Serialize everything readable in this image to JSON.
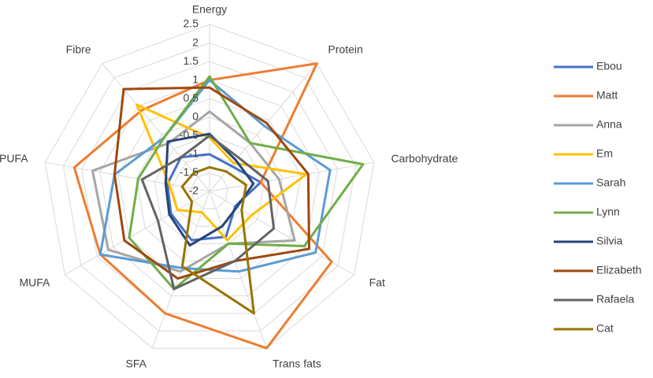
{
  "chart_data": {
    "type": "radar",
    "categories": [
      "Energy",
      "Protein",
      "Carbohydrate",
      "Fat",
      "Trans fats",
      "SFA",
      "MUFA",
      "PUFA",
      "Fibre"
    ],
    "ylim": [
      -2,
      2.5
    ],
    "yticks": [
      -2,
      -1.5,
      -1,
      -0.5,
      0,
      0.5,
      1,
      1.5,
      2,
      2.5
    ],
    "grid": true,
    "legend": "right",
    "series": [
      {
        "name": "Ebou",
        "color": "#4472c4",
        "values": [
          -1.0,
          -1.1,
          -0.6,
          -1.2,
          -0.7,
          -0.6,
          -0.8,
          -0.85,
          -0.8
        ]
      },
      {
        "name": "Matt",
        "color": "#ed7d31",
        "values": [
          1.0,
          2.5,
          -0.6,
          1.8,
          2.5,
          1.5,
          1.4,
          1.7,
          0.85
        ]
      },
      {
        "name": "Anna",
        "color": "#a5a5a5",
        "values": [
          0.15,
          -0.3,
          -0.1,
          0.65,
          -0.5,
          0.3,
          1.15,
          1.2,
          -0.3
        ]
      },
      {
        "name": "Em",
        "color": "#ffc000",
        "values": [
          -0.55,
          -1.0,
          0.65,
          -0.7,
          -0.6,
          -1.4,
          -1.0,
          -0.9,
          1.05
        ]
      },
      {
        "name": "Sarah",
        "color": "#5b9bd5",
        "values": [
          1.0,
          0.3,
          1.3,
          1.3,
          0.3,
          0.2,
          1.4,
          0.6,
          -0.1
        ]
      },
      {
        "name": "Lynn",
        "color": "#70ad47",
        "values": [
          1.1,
          -0.3,
          2.2,
          0.95,
          -0.5,
          0.8,
          0.5,
          -0.05,
          -0.1
        ]
      },
      {
        "name": "Silvia",
        "color": "#264478",
        "values": [
          -0.45,
          -0.9,
          -0.8,
          -1.15,
          -1.0,
          -0.45,
          -0.75,
          -0.8,
          -0.25
        ]
      },
      {
        "name": "Elizabeth",
        "color": "#9e480e",
        "values": [
          0.8,
          0.4,
          0.7,
          1.1,
          0.0,
          0.5,
          0.65,
          0.6,
          1.6
        ]
      },
      {
        "name": "Rafaela",
        "color": "#636363",
        "values": [
          -0.5,
          -0.8,
          -0.4,
          0.0,
          0.0,
          0.8,
          -0.4,
          -0.15,
          -0.8
        ]
      },
      {
        "name": "Cat",
        "color": "#997300",
        "values": [
          -1.35,
          -1.3,
          -1.0,
          -1.0,
          1.5,
          0.15,
          -1.45,
          -1.25,
          -1.35
        ]
      }
    ]
  }
}
